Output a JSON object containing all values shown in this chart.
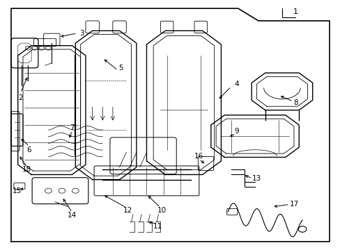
{
  "title": "",
  "bg_color": "#ffffff",
  "border_color": "#000000",
  "line_color": "#000000",
  "text_color": "#000000",
  "fig_width": 4.89,
  "fig_height": 3.6,
  "dpi": 100
}
